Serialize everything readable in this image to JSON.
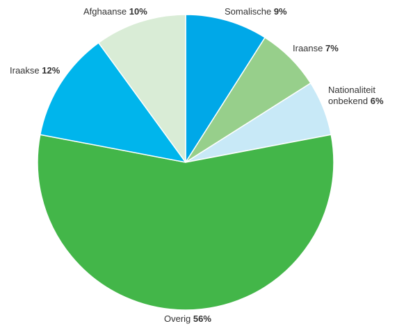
{
  "chart_data": {
    "type": "pie",
    "slices": [
      {
        "label": "Somalische",
        "value": 9,
        "pct_label": "9%",
        "color": "#00a8e8"
      },
      {
        "label": "Iraanse",
        "value": 7,
        "pct_label": "7%",
        "color": "#97cf8b"
      },
      {
        "label": "Nationaliteit onbekend",
        "label_line1": "Nationaliteit",
        "label_line2": "onbekend",
        "value": 6,
        "pct_label": "6%",
        "color": "#c8e9f7"
      },
      {
        "label": "Overig",
        "value": 56,
        "pct_label": "56%",
        "color": "#43b649"
      },
      {
        "label": "Iraakse",
        "value": 12,
        "pct_label": "12%",
        "color": "#00b5ec"
      },
      {
        "label": "Afghaanse",
        "value": 10,
        "pct_label": "10%",
        "color": "#d9ecd6"
      }
    ],
    "start": "12 o'clock",
    "direction": "clockwise",
    "legend": "none"
  }
}
